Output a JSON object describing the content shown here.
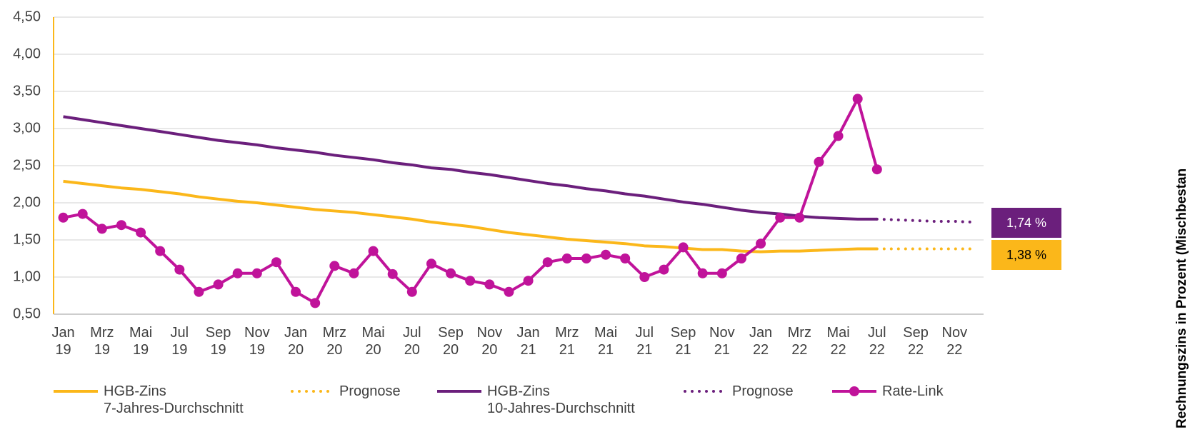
{
  "chart_data": {
    "type": "line",
    "y_label": "Rechnungszins in Prozent (Mischbestan",
    "categories": [
      "Jan\n19",
      null,
      "Mrz\n19",
      null,
      "Mai\n19",
      null,
      "Jul\n19",
      null,
      "Sep\n19",
      null,
      "Nov\n19",
      null,
      "Jan\n20",
      null,
      "Mrz\n20",
      null,
      "Mai\n20",
      null,
      "Jul\n20",
      null,
      "Sep\n20",
      null,
      "Nov\n20",
      null,
      "Jan\n21",
      null,
      "Mrz\n21",
      null,
      "Mai\n21",
      null,
      "Jul\n21",
      null,
      "Sep\n21",
      null,
      "Nov\n21",
      null,
      "Jan\n22",
      null,
      "Mrz\n22",
      null,
      "Mai\n22",
      null,
      "Jul\n22",
      null,
      "Sep\n22",
      null,
      "Nov\n22",
      null
    ],
    "series": [
      {
        "name": "HGB-Zins\n7-Jahres-Durchschnitt",
        "color": "#fbb71a",
        "style": "solid",
        "marker": false,
        "values": [
          2.29,
          2.26,
          2.23,
          2.2,
          2.18,
          2.15,
          2.12,
          2.08,
          2.05,
          2.02,
          2.0,
          1.97,
          1.94,
          1.91,
          1.89,
          1.87,
          1.84,
          1.81,
          1.78,
          1.74,
          1.71,
          1.68,
          1.64,
          1.6,
          1.57,
          1.54,
          1.51,
          1.49,
          1.47,
          1.45,
          1.42,
          1.41,
          1.39,
          1.37,
          1.37,
          1.35,
          1.34,
          1.35,
          1.35,
          1.36,
          1.37,
          1.38,
          1.38,
          null,
          null,
          null,
          null,
          null
        ]
      },
      {
        "name": "Prognose",
        "color": "#fbb71a",
        "style": "dotted",
        "marker": false,
        "values": [
          null,
          null,
          null,
          null,
          null,
          null,
          null,
          null,
          null,
          null,
          null,
          null,
          null,
          null,
          null,
          null,
          null,
          null,
          null,
          null,
          null,
          null,
          null,
          null,
          null,
          null,
          null,
          null,
          null,
          null,
          null,
          null,
          null,
          null,
          null,
          null,
          null,
          null,
          null,
          null,
          null,
          null,
          1.38,
          1.38,
          1.38,
          1.38,
          1.38,
          1.38
        ]
      },
      {
        "name": "HGB-Zins\n10-Jahres-Durchschnitt",
        "color": "#6b1f7c",
        "style": "solid",
        "marker": false,
        "values": [
          3.16,
          3.12,
          3.08,
          3.04,
          3.0,
          2.96,
          2.92,
          2.88,
          2.84,
          2.81,
          2.78,
          2.74,
          2.71,
          2.68,
          2.64,
          2.61,
          2.58,
          2.54,
          2.51,
          2.47,
          2.45,
          2.41,
          2.38,
          2.34,
          2.3,
          2.26,
          2.23,
          2.19,
          2.16,
          2.12,
          2.09,
          2.05,
          2.01,
          1.98,
          1.94,
          1.9,
          1.87,
          1.85,
          1.82,
          1.8,
          1.79,
          1.78,
          1.78,
          null,
          null,
          null,
          null,
          null
        ]
      },
      {
        "name": "Prognose",
        "color": "#6b1f7c",
        "style": "dotted",
        "marker": false,
        "values": [
          null,
          null,
          null,
          null,
          null,
          null,
          null,
          null,
          null,
          null,
          null,
          null,
          null,
          null,
          null,
          null,
          null,
          null,
          null,
          null,
          null,
          null,
          null,
          null,
          null,
          null,
          null,
          null,
          null,
          null,
          null,
          null,
          null,
          null,
          null,
          null,
          null,
          null,
          null,
          null,
          null,
          null,
          1.78,
          1.77,
          1.76,
          1.75,
          1.75,
          1.74
        ]
      },
      {
        "name": "Rate-Link",
        "color": "#c0139a",
        "style": "solid",
        "marker": true,
        "values": [
          1.8,
          1.85,
          1.65,
          1.7,
          1.6,
          1.35,
          1.1,
          0.8,
          0.9,
          1.05,
          1.05,
          1.2,
          0.8,
          0.65,
          1.15,
          1.05,
          1.35,
          1.04,
          0.8,
          1.18,
          1.05,
          0.95,
          0.9,
          0.8,
          0.95,
          1.2,
          1.25,
          1.25,
          1.3,
          1.25,
          1.0,
          1.1,
          1.4,
          1.05,
          1.05,
          1.25,
          1.45,
          1.8,
          1.8,
          2.55,
          2.9,
          3.4,
          2.45,
          null,
          null,
          null,
          null,
          null
        ]
      }
    ],
    "annotations": [
      {
        "text": "1,74 %",
        "color": "#6b1f7c"
      },
      {
        "text": "1,38 %",
        "color": "#fbb71a"
      }
    ],
    "ylim": [
      0.5,
      4.5
    ],
    "yticks": [
      {
        "value": 0.5,
        "label": "0,50"
      },
      {
        "value": 1,
        "label": "1,00"
      },
      {
        "value": 1.5,
        "label": "1,50"
      },
      {
        "value": 2,
        "label": "2,00"
      },
      {
        "value": 2.5,
        "label": "2,50"
      },
      {
        "value": 3,
        "label": "3,00"
      },
      {
        "value": 3.5,
        "label": "3,50"
      },
      {
        "value": 4,
        "label": "4,00"
      },
      {
        "value": 4.5,
        "label": "4,50"
      }
    ],
    "grid": true
  }
}
